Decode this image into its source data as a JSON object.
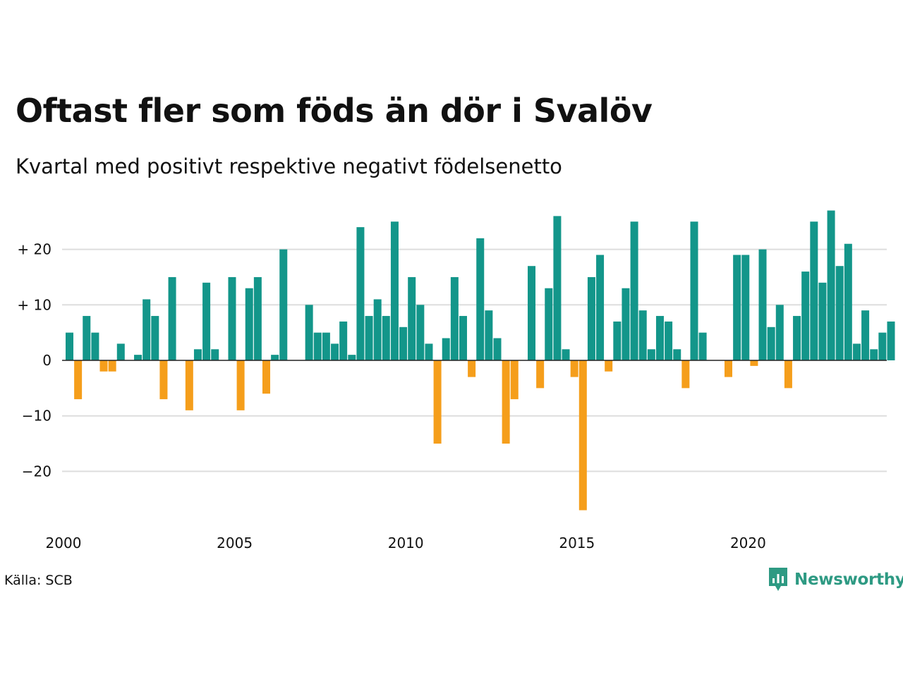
{
  "title": "Oftast fler som föds än dör i Svalöv",
  "subtitle": "Kvartal med positivt respektive negativt födelsenetto",
  "source": "Källa: SCB",
  "brand": "Newsworthy",
  "colors": {
    "positive": "#13968a",
    "negative": "#f59e1b",
    "grid": "#dddddd",
    "brand": "#2e9a83"
  },
  "chart_data": {
    "type": "bar",
    "title": "Oftast fler som föds än dör i Svalöv",
    "subtitle": "Kvartal med positivt respektive negativt födelsenetto",
    "x_start": 2000,
    "x_tick_labels": [
      "2000",
      "2005",
      "2010",
      "2015",
      "2020"
    ],
    "y_tick_values": [
      20,
      10,
      0,
      -10,
      -20
    ],
    "y_tick_labels": [
      "+ 20",
      "+ 10",
      "0",
      "−10",
      "−20"
    ],
    "ylim": [
      -27,
      27
    ],
    "grid": true,
    "values": [
      5,
      -7,
      8,
      5,
      -2,
      -2,
      3,
      0,
      1,
      11,
      8,
      -7,
      15,
      0,
      -9,
      2,
      14,
      2,
      0,
      15,
      -9,
      13,
      15,
      -6,
      1,
      20,
      0,
      0,
      10,
      5,
      5,
      3,
      7,
      1,
      24,
      8,
      11,
      8,
      25,
      6,
      15,
      10,
      3,
      -15,
      4,
      15,
      8,
      -3,
      22,
      9,
      4,
      -15,
      -7,
      0,
      17,
      -5,
      13,
      26,
      2,
      -3,
      -27,
      15,
      19,
      -2,
      7,
      13,
      25,
      9,
      2,
      8,
      7,
      2,
      -5,
      25,
      5,
      0,
      0,
      -3,
      19,
      19,
      -1,
      20,
      6,
      10,
      -5,
      8,
      16,
      25,
      14,
      27,
      17,
      21,
      3,
      9,
      2,
      5,
      7
    ]
  }
}
